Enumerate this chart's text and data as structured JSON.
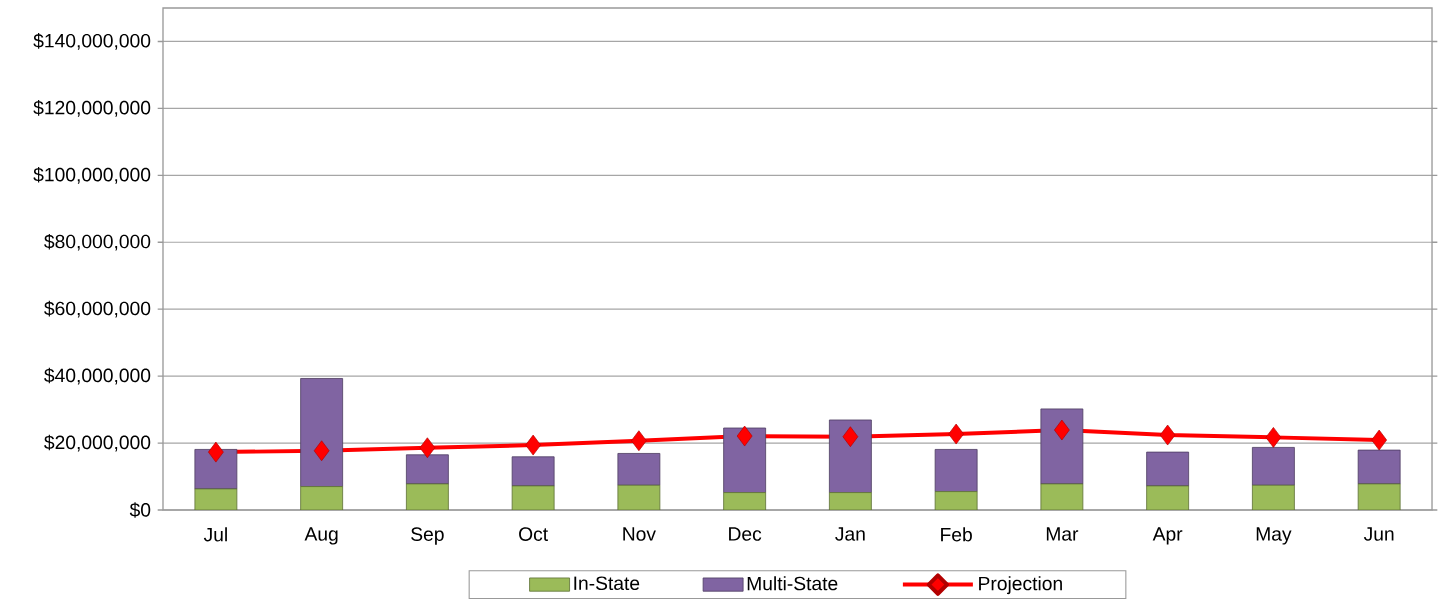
{
  "chart_data": {
    "type": "bar",
    "stacked": true,
    "categories": [
      "Jul",
      "Aug",
      "Sep",
      "Oct",
      "Nov",
      "Dec",
      "Jan",
      "Feb",
      "Mar",
      "Apr",
      "May",
      "Jun"
    ],
    "series": [
      {
        "name": "In-State",
        "color": "#9bbb59",
        "values": [
          6300000,
          7000000,
          7800000,
          7200000,
          7400000,
          5200000,
          5200000,
          5500000,
          7800000,
          7200000,
          7400000,
          7800000
        ]
      },
      {
        "name": "Multi-State",
        "color": "#8064a2",
        "values": [
          11800000,
          32300000,
          8700000,
          8700000,
          9500000,
          19300000,
          21700000,
          12600000,
          22400000,
          10100000,
          11300000,
          10100000
        ]
      },
      {
        "name": "Projection",
        "type": "line",
        "color": "#ff0000",
        "marker": "diamond",
        "line_style": "solid",
        "values": [
          17300000,
          17700000,
          18600000,
          19400000,
          20700000,
          22100000,
          21900000,
          22700000,
          23900000,
          22400000,
          21700000,
          20900000
        ]
      }
    ],
    "ylim": [
      0,
      150000000
    ],
    "yticks": [
      {
        "value": 0,
        "label": "$0"
      },
      {
        "value": 20000000,
        "label": "$20,000,000"
      },
      {
        "value": 40000000,
        "label": "$40,000,000"
      },
      {
        "value": 60000000,
        "label": "$60,000,000"
      },
      {
        "value": 80000000,
        "label": "$80,000,000"
      },
      {
        "value": 100000000,
        "label": "$100,000,000"
      },
      {
        "value": 120000000,
        "label": "$120,000,000"
      },
      {
        "value": 140000000,
        "label": "$140,000,000"
      }
    ],
    "grid": "y",
    "legend": "bottom"
  }
}
